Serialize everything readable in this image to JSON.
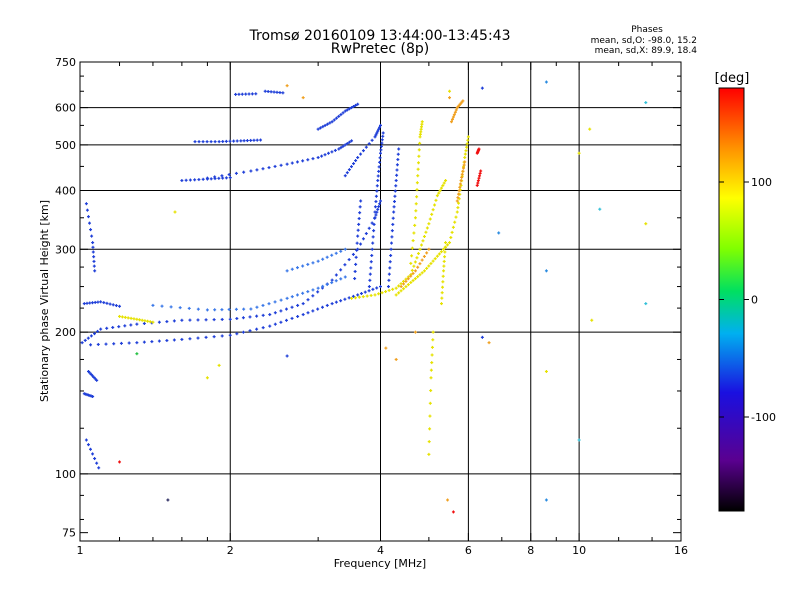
{
  "chart_data": {
    "type": "scatter",
    "title": "Tromsø 20160109 13:44:00-13:45:43",
    "subtitle": "RwPretec (8p)",
    "xlabel": "Frequency [MHz]",
    "ylabel": "Stationary phase Virtual Height [km]",
    "x_scale": "log",
    "y_scale": "log",
    "xlim": [
      1,
      16
    ],
    "ylim": [
      72,
      750
    ],
    "x_ticks": [
      1,
      2,
      4,
      6,
      8,
      10,
      16
    ],
    "x_tick_labels": [
      "1",
      "2",
      "4",
      "6",
      "8",
      "10",
      "16"
    ],
    "y_ticks": [
      75,
      100,
      200,
      300,
      400,
      500,
      600,
      750
    ],
    "y_tick_labels": [
      "75",
      "100",
      "200",
      "300",
      "400",
      "500",
      "600",
      "750"
    ],
    "x_minor_ticks": [
      1.2,
      1.4,
      1.6,
      1.8,
      3,
      5,
      7,
      9,
      12,
      14
    ],
    "y_minor_ticks": [
      80,
      90,
      125,
      150,
      175,
      225,
      250,
      275,
      350,
      450,
      550,
      650,
      700
    ],
    "x_grid": [
      2,
      4,
      6,
      8,
      10
    ],
    "y_grid": [
      100,
      200,
      300,
      400,
      500,
      600
    ],
    "grid": true,
    "legend_position": "top-right",
    "stats": {
      "title": "Phases",
      "lines": [
        "mean, sd,O: -98.0, 15.2",
        "mean, sd,X: 89.9, 18.4"
      ]
    },
    "colorbar": {
      "label": "[deg]",
      "range": [
        -180,
        180
      ],
      "ticks": [
        100,
        0,
        -100
      ],
      "tick_labels": [
        "100",
        "0",
        "-100"
      ]
    },
    "series": [
      {
        "color": "#1f3fd8",
        "segments": [
          [
            [
              1.01,
              190
            ],
            [
              1.1,
              203
            ],
            [
              1.3,
              208
            ],
            [
              1.6,
              212
            ],
            [
              2.0,
              213
            ],
            [
              2.4,
              218
            ],
            [
              2.8,
              230
            ],
            [
              3.2,
              258
            ],
            [
              3.6,
              300
            ],
            [
              3.9,
              350
            ],
            [
              4.0,
              380
            ]
          ],
          [
            [
              1.05,
              188
            ],
            [
              1.3,
              190
            ],
            [
              1.6,
              193
            ],
            [
              2.0,
              197
            ],
            [
              2.4,
              206
            ],
            [
              2.8,
              218
            ],
            [
              3.2,
              230
            ],
            [
              3.6,
              240
            ],
            [
              4.0,
              250
            ]
          ],
          [
            [
              1.7,
              508
            ],
            [
              1.9,
              508
            ],
            [
              2.1,
              510
            ],
            [
              2.3,
              512
            ]
          ],
          [
            [
              1.8,
              425
            ],
            [
              2.2,
              440
            ],
            [
              2.6,
              455
            ],
            [
              3.0,
              470
            ],
            [
              3.3,
              490
            ],
            [
              3.5,
              510
            ]
          ],
          [
            [
              3.4,
              430
            ],
            [
              3.6,
              470
            ],
            [
              3.9,
              520
            ],
            [
              4.0,
              550
            ]
          ],
          [
            [
              1.6,
              420
            ],
            [
              1.8,
              423
            ],
            [
              2.0,
              426
            ]
          ],
          [
            [
              3.0,
              540
            ],
            [
              3.2,
              560
            ],
            [
              3.4,
              590
            ],
            [
              3.6,
              610
            ]
          ],
          [
            [
              2.05,
              640
            ],
            [
              2.25,
              642
            ]
          ],
          [
            [
              2.35,
              650
            ],
            [
              2.55,
              645
            ]
          ],
          [
            [
              1.02,
              230
            ],
            [
              1.1,
              232
            ],
            [
              1.2,
              227
            ]
          ],
          [
            [
              1.03,
              375
            ],
            [
              1.06,
              310
            ],
            [
              1.07,
              270
            ]
          ],
          [
            [
              1.04,
              165
            ],
            [
              1.08,
              158
            ]
          ],
          [
            [
              1.02,
              148
            ],
            [
              1.06,
              146
            ]
          ],
          [
            [
              1.03,
              118
            ],
            [
              1.09,
              103
            ]
          ],
          [
            [
              3.8,
              250
            ],
            [
              3.85,
              300
            ],
            [
              3.9,
              360
            ],
            [
              3.95,
              420
            ],
            [
              4.0,
              480
            ],
            [
              4.05,
              530
            ]
          ],
          [
            [
              4.15,
              250
            ],
            [
              4.2,
              300
            ],
            [
              4.25,
              360
            ],
            [
              4.3,
              420
            ],
            [
              4.35,
              490
            ]
          ],
          [
            [
              3.55,
              260
            ],
            [
              3.6,
              320
            ],
            [
              3.65,
              380
            ]
          ]
        ]
      },
      {
        "color": "#3a78e8",
        "segments": [
          [
            [
              1.4,
              228
            ],
            [
              1.8,
              223
            ],
            [
              2.2,
              224
            ],
            [
              2.6,
              236
            ],
            [
              3.0,
              248
            ],
            [
              3.4,
              262
            ]
          ],
          [
            [
              2.6,
              270
            ],
            [
              3.0,
              283
            ],
            [
              3.4,
              300
            ]
          ]
        ]
      },
      {
        "color": "#e6e200",
        "segments": [
          [
            [
              3.5,
              236
            ],
            [
              3.9,
              240
            ],
            [
              4.3,
              248
            ],
            [
              4.6,
              265
            ],
            [
              4.8,
              300
            ],
            [
              5.0,
              340
            ],
            [
              5.2,
              390
            ],
            [
              5.4,
              420
            ]
          ],
          [
            [
              4.3,
              240
            ],
            [
              4.6,
              255
            ],
            [
              4.9,
              270
            ],
            [
              5.2,
              290
            ],
            [
              5.5,
              310
            ],
            [
              5.7,
              360
            ],
            [
              5.8,
              410
            ],
            [
              5.9,
              470
            ],
            [
              6.0,
              520
            ]
          ],
          [
            [
              4.6,
              280
            ],
            [
              4.7,
              350
            ],
            [
              4.75,
              430
            ],
            [
              4.8,
              520
            ],
            [
              4.85,
              560
            ]
          ],
          [
            [
              5.3,
              230
            ],
            [
              5.35,
              270
            ],
            [
              5.4,
              310
            ]
          ],
          [
            [
              1.2,
              216
            ],
            [
              1.3,
              213
            ],
            [
              1.4,
              210
            ]
          ],
          [
            [
              5.0,
              110
            ],
            [
              5.05,
              160
            ],
            [
              5.1,
              200
            ]
          ]
        ]
      },
      {
        "color": "#f0a020",
        "segments": [
          [
            [
              4.4,
              250
            ],
            [
              4.7,
              270
            ],
            [
              5.0,
              300
            ]
          ],
          [
            [
              5.7,
              380
            ],
            [
              5.8,
              420
            ],
            [
              5.9,
              460
            ]
          ],
          [
            [
              5.55,
              560
            ],
            [
              5.7,
              600
            ],
            [
              5.85,
              620
            ]
          ]
        ]
      },
      {
        "color": "#f01010",
        "segments": [
          [
            [
              6.25,
              410
            ],
            [
              6.35,
              440
            ]
          ],
          [
            [
              6.25,
              480
            ],
            [
              6.3,
              490
            ]
          ]
        ]
      }
    ],
    "points": [
      {
        "x": 8.6,
        "y": 680,
        "color": "#2a8be0"
      },
      {
        "x": 13.6,
        "y": 615,
        "color": "#33c0d8"
      },
      {
        "x": 10.5,
        "y": 540,
        "color": "#e6e200"
      },
      {
        "x": 10.0,
        "y": 480,
        "color": "#e6e200"
      },
      {
        "x": 11.0,
        "y": 365,
        "color": "#33c0d8"
      },
      {
        "x": 13.6,
        "y": 340,
        "color": "#e6e200"
      },
      {
        "x": 8.6,
        "y": 270,
        "color": "#2a8be0"
      },
      {
        "x": 13.6,
        "y": 230,
        "color": "#33c0d8"
      },
      {
        "x": 10.6,
        "y": 212,
        "color": "#e6e200"
      },
      {
        "x": 8.6,
        "y": 165,
        "color": "#e6e200"
      },
      {
        "x": 10.0,
        "y": 118,
        "color": "#33c0d8"
      },
      {
        "x": 8.6,
        "y": 88,
        "color": "#2a8be0"
      },
      {
        "x": 6.9,
        "y": 325,
        "color": "#2a8be0"
      },
      {
        "x": 6.6,
        "y": 190,
        "color": "#f0a020"
      },
      {
        "x": 6.4,
        "y": 195,
        "color": "#1f3fd8"
      },
      {
        "x": 6.4,
        "y": 660,
        "color": "#1f3fd8"
      },
      {
        "x": 5.6,
        "y": 83,
        "color": "#f01010"
      },
      {
        "x": 5.45,
        "y": 88,
        "color": "#f0a020"
      },
      {
        "x": 1.5,
        "y": 88,
        "color": "#2a2a60"
      },
      {
        "x": 1.2,
        "y": 106,
        "color": "#f01010"
      },
      {
        "x": 1.55,
        "y": 360,
        "color": "#e6e200"
      },
      {
        "x": 2.6,
        "y": 668,
        "color": "#f0a020"
      },
      {
        "x": 2.8,
        "y": 630,
        "color": "#f0a020"
      },
      {
        "x": 1.8,
        "y": 160,
        "color": "#e6e200"
      },
      {
        "x": 2.6,
        "y": 178,
        "color": "#1f3fd8"
      },
      {
        "x": 1.3,
        "y": 180,
        "color": "#22c040"
      },
      {
        "x": 1.9,
        "y": 170,
        "color": "#e6e200"
      },
      {
        "x": 5.5,
        "y": 650,
        "color": "#e6e200"
      },
      {
        "x": 5.5,
        "y": 630,
        "color": "#f0a020"
      },
      {
        "x": 4.7,
        "y": 200,
        "color": "#f0a020"
      },
      {
        "x": 4.1,
        "y": 185,
        "color": "#f0a020"
      },
      {
        "x": 4.3,
        "y": 175,
        "color": "#f0a020"
      }
    ]
  }
}
